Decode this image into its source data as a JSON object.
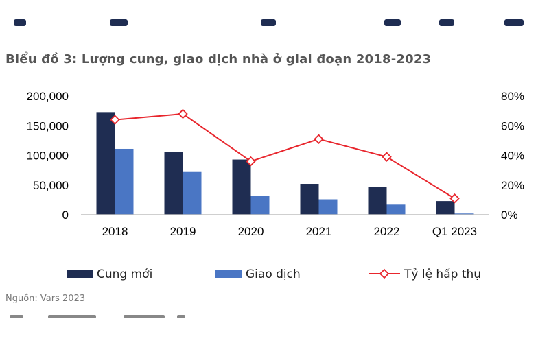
{
  "title": "Biểu đồ 3: Lượng cung, giao dịch nhà ở giai đoạn 2018-2023",
  "source": "Nguồn: Vars 2023",
  "colors": {
    "supply": "#1f2d52",
    "transactions": "#4a76c4",
    "rate": "#e8262d"
  },
  "chart_data": {
    "type": "bar",
    "categories": [
      "2018",
      "2019",
      "2020",
      "2021",
      "2022",
      "Q1 2023"
    ],
    "series": [
      {
        "name": "Cung mới",
        "type": "bar",
        "axis": "left",
        "values": [
          173000,
          106000,
          93000,
          52000,
          47000,
          23000
        ]
      },
      {
        "name": "Giao dịch",
        "type": "bar",
        "axis": "left",
        "values": [
          111000,
          72000,
          32000,
          26000,
          17000,
          2000
        ]
      },
      {
        "name": "Tỷ lệ hấp thụ",
        "type": "line",
        "axis": "right",
        "values": [
          64,
          68,
          36,
          51,
          39,
          11
        ]
      }
    ],
    "y_left": {
      "min": 0,
      "max": 200000,
      "ticks": [
        "0",
        "50,000",
        "100,000",
        "150,000",
        "200,000"
      ]
    },
    "y_right": {
      "min": 0,
      "max": 80,
      "ticks": [
        "0%",
        "20%",
        "40%",
        "60%",
        "80%"
      ]
    },
    "grid": false,
    "legend": "bottom"
  }
}
